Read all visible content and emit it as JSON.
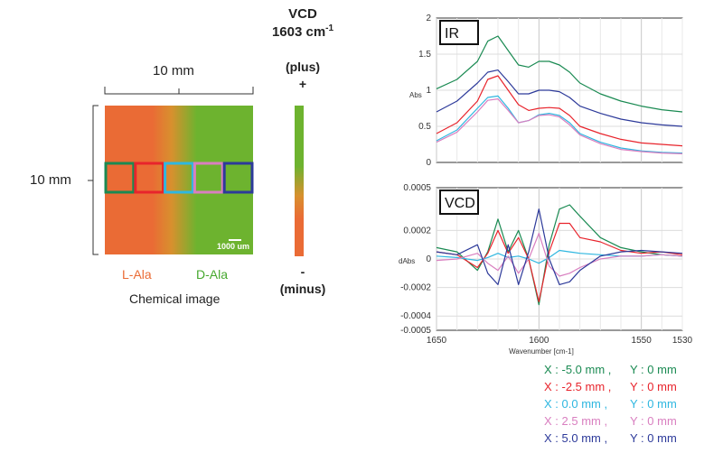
{
  "vcd_header": {
    "title": "VCD",
    "wavenumber": "1603 cm",
    "sup": "-1"
  },
  "chem": {
    "width_label": "10 mm",
    "height_label": "10 mm",
    "scale_label": "1000 um",
    "l_label": "L-Ala",
    "d_label": "D-Ala",
    "caption": "Chemical image",
    "colors": {
      "orange": "#ea6b35",
      "mid": "#d8902e",
      "green": "#6db32f"
    },
    "boxes": [
      {
        "color": "#1a8a52"
      },
      {
        "color": "#e8242c"
      },
      {
        "color": "#2fb7e0"
      },
      {
        "color": "#d97fc0"
      },
      {
        "color": "#2d3a9a"
      }
    ]
  },
  "colorbar": {
    "plus_label": "(plus)",
    "plus_sign": "+",
    "minus_sign": "-",
    "minus_label": "(minus)"
  },
  "ir_panel": {
    "title": "IR",
    "ylabel": "Abs",
    "yticks": [
      "2",
      "1.5",
      "1",
      "0.5",
      "0"
    ]
  },
  "vcd_panel": {
    "title": "VCD",
    "ylabel": "dAbs",
    "yticks": [
      "0.0005",
      "0.0002",
      "0",
      "-0.0002",
      "-0.0004",
      "-0.0005"
    ]
  },
  "x_axis": {
    "ticks": [
      "1650",
      "1600",
      "1550",
      "1530"
    ],
    "label": "Wavenumber [cm-1]"
  },
  "legend": [
    {
      "x": "X : -5.0 mm ,",
      "y": "Y : 0 mm",
      "color": "#1a8a52"
    },
    {
      "x": "X : -2.5 mm ,",
      "y": "Y : 0 mm",
      "color": "#e8242c"
    },
    {
      "x": "X : 0.0 mm ,",
      "y": "Y : 0 mm",
      "color": "#2fb7e0"
    },
    {
      "x": "X : 2.5 mm ,",
      "y": "Y : 0 mm",
      "color": "#d97fc0"
    },
    {
      "x": "X : 5.0 mm ,",
      "y": "Y : 0 mm",
      "color": "#2d3a9a"
    }
  ],
  "chart_data": [
    {
      "type": "line",
      "title": "IR",
      "xlabel": "Wavenumber [cm-1]",
      "ylabel": "Abs",
      "xlim": [
        1650,
        1530
      ],
      "ylim": [
        0,
        2
      ],
      "grid": true,
      "series": [
        {
          "name": "X : -5.0 mm ,  Y : 0 mm",
          "color": "#1a8a52",
          "x": [
            1650,
            1640,
            1630,
            1625,
            1620,
            1615,
            1610,
            1605,
            1600,
            1595,
            1590,
            1585,
            1580,
            1570,
            1560,
            1550,
            1540,
            1530
          ],
          "y": [
            1.02,
            1.15,
            1.4,
            1.68,
            1.75,
            1.55,
            1.35,
            1.32,
            1.4,
            1.4,
            1.35,
            1.25,
            1.1,
            0.95,
            0.85,
            0.78,
            0.73,
            0.7
          ]
        },
        {
          "name": "X : -2.5 mm ,  Y : 0 mm",
          "color": "#e8242c",
          "x": [
            1650,
            1640,
            1630,
            1625,
            1620,
            1615,
            1610,
            1605,
            1600,
            1595,
            1590,
            1585,
            1580,
            1570,
            1560,
            1550,
            1540,
            1530
          ],
          "y": [
            0.4,
            0.55,
            0.85,
            1.15,
            1.2,
            1.0,
            0.8,
            0.72,
            0.75,
            0.76,
            0.75,
            0.65,
            0.5,
            0.4,
            0.32,
            0.27,
            0.25,
            0.23
          ]
        },
        {
          "name": "X : 0.0 mm ,  Y : 0 mm",
          "color": "#2fb7e0",
          "x": [
            1650,
            1640,
            1630,
            1625,
            1620,
            1615,
            1610,
            1605,
            1600,
            1595,
            1590,
            1585,
            1580,
            1570,
            1560,
            1550,
            1540,
            1530
          ],
          "y": [
            0.3,
            0.45,
            0.75,
            0.9,
            0.92,
            0.75,
            0.55,
            0.58,
            0.66,
            0.68,
            0.65,
            0.55,
            0.4,
            0.28,
            0.2,
            0.16,
            0.14,
            0.13
          ]
        },
        {
          "name": "X : 2.5 mm ,  Y : 0 mm",
          "color": "#d97fc0",
          "x": [
            1650,
            1640,
            1630,
            1625,
            1620,
            1615,
            1610,
            1605,
            1600,
            1595,
            1590,
            1585,
            1580,
            1570,
            1560,
            1550,
            1540,
            1530
          ],
          "y": [
            0.28,
            0.42,
            0.7,
            0.86,
            0.88,
            0.72,
            0.55,
            0.58,
            0.65,
            0.66,
            0.63,
            0.52,
            0.38,
            0.26,
            0.18,
            0.15,
            0.13,
            0.12
          ]
        },
        {
          "name": "X : 5.0 mm ,  Y : 0 mm",
          "color": "#2d3a9a",
          "x": [
            1650,
            1640,
            1630,
            1625,
            1620,
            1615,
            1610,
            1605,
            1600,
            1595,
            1590,
            1585,
            1580,
            1570,
            1560,
            1550,
            1540,
            1530
          ],
          "y": [
            0.7,
            0.85,
            1.1,
            1.25,
            1.28,
            1.12,
            0.95,
            0.95,
            1.0,
            1.0,
            0.98,
            0.9,
            0.78,
            0.68,
            0.6,
            0.55,
            0.52,
            0.5
          ]
        }
      ]
    },
    {
      "type": "line",
      "title": "VCD",
      "xlabel": "Wavenumber [cm-1]",
      "ylabel": "dAbs",
      "xlim": [
        1650,
        1530
      ],
      "ylim": [
        -0.0005,
        0.0005
      ],
      "grid": true,
      "series": [
        {
          "name": "X : -5.0 mm ,  Y : 0 mm",
          "color": "#1a8a52",
          "x": [
            1650,
            1640,
            1630,
            1625,
            1620,
            1615,
            1610,
            1605,
            1600,
            1595,
            1590,
            1585,
            1580,
            1570,
            1560,
            1550,
            1540,
            1530
          ],
          "y": [
            8e-05,
            5e-05,
            -8e-05,
            5e-05,
            0.00028,
            5e-05,
            0.0002,
            0.0,
            -0.00032,
            0.0001,
            0.00035,
            0.00038,
            0.0003,
            0.00015,
            8e-05,
            5e-05,
            3e-05,
            2e-05
          ]
        },
        {
          "name": "X : -2.5 mm ,  Y : 0 mm",
          "color": "#e8242c",
          "x": [
            1650,
            1640,
            1630,
            1625,
            1620,
            1615,
            1610,
            1605,
            1600,
            1595,
            1590,
            1585,
            1580,
            1570,
            1560,
            1550,
            1540,
            1530
          ],
          "y": [
            5e-05,
            3e-05,
            -6e-05,
            4e-05,
            0.0002,
            4e-05,
            0.00015,
            0.0,
            -0.0003,
            5e-05,
            0.00025,
            0.00025,
            0.00015,
            0.00012,
            6e-05,
            4e-05,
            5e-05,
            3e-05
          ]
        },
        {
          "name": "X : 0.0 mm ,  Y : 0 mm",
          "color": "#2fb7e0",
          "x": [
            1650,
            1640,
            1630,
            1625,
            1620,
            1615,
            1610,
            1605,
            1600,
            1595,
            1590,
            1585,
            1580,
            1570,
            1560,
            1550,
            1540,
            1530
          ],
          "y": [
            2e-05,
            1e-05,
            -1e-05,
            1e-05,
            4e-05,
            1e-05,
            2e-05,
            0.0,
            -3e-05,
            1e-05,
            6e-05,
            5e-05,
            4e-05,
            3e-05,
            2e-05,
            2e-05,
            3e-05,
            2e-05
          ]
        },
        {
          "name": "X : 2.5 mm ,  Y : 0 mm",
          "color": "#d97fc0",
          "x": [
            1650,
            1640,
            1630,
            1625,
            1620,
            1615,
            1610,
            1605,
            1600,
            1595,
            1590,
            1585,
            1580,
            1570,
            1560,
            1550,
            1540,
            1530
          ],
          "y": [
            -1e-05,
            0.0,
            4e-05,
            -3e-05,
            -8e-05,
            2e-05,
            -0.0001,
            0.0,
            0.00018,
            -5e-05,
            -0.00012,
            -0.0001,
            -6e-05,
            0.0,
            2e-05,
            2e-05,
            3e-05,
            2e-05
          ]
        },
        {
          "name": "X : 5.0 mm ,  Y : 0 mm",
          "color": "#2d3a9a",
          "x": [
            1650,
            1640,
            1630,
            1625,
            1620,
            1615,
            1610,
            1605,
            1600,
            1595,
            1590,
            1585,
            1580,
            1570,
            1560,
            1550,
            1540,
            1530
          ],
          "y": [
            5e-05,
            3e-05,
            0.0001,
            -0.0001,
            -0.00018,
            0.0001,
            -0.00018,
            5e-05,
            0.00035,
            0.0,
            -0.00018,
            -0.00016,
            -8e-05,
            2e-05,
            5e-05,
            6e-05,
            5e-05,
            4e-05
          ]
        }
      ]
    }
  ]
}
